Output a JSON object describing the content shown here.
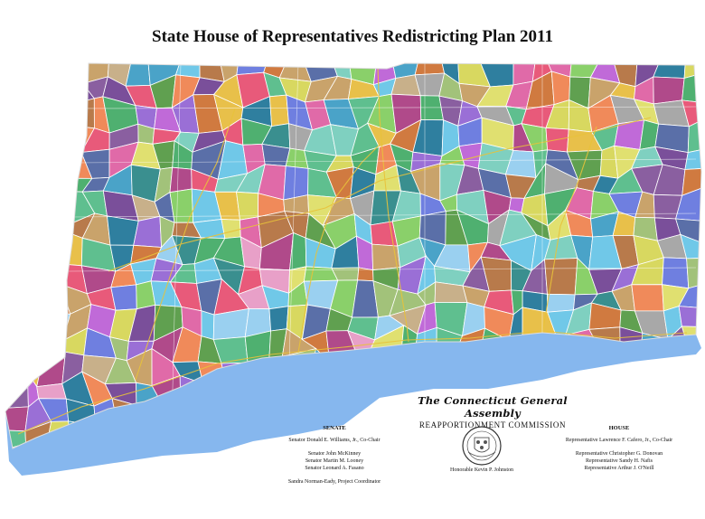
{
  "title": "State House of Representatives Redistricting Plan 2011",
  "assembly": {
    "name": "The Connecticut General Assembly",
    "commission": "REAPPORTIONMENT COMMISSION"
  },
  "senate": {
    "header": "SENATE",
    "co_chair": "Senator Donald E. Williams, Jr., Co-Chair",
    "members": [
      "Senator John McKinney",
      "Senator Martin M. Looney",
      "Senator Leonard A. Fasano"
    ],
    "coordinator": "Sandra Norman-Eady, Project Coordinator"
  },
  "house": {
    "header": "HOUSE",
    "co_chair": "Representative Lawrence F. Cafero, Jr., Co-Chair",
    "members": [
      "Representative Christopher G. Donovan",
      "Representative Sandy H. Nafis",
      "Representative Arthur J. O'Neill"
    ]
  },
  "seal_caption": "Honorable Kevin P. Johnston",
  "colors": {
    "water": "#86b7ee",
    "border": "#ffffff",
    "highway": "#e8c23a"
  },
  "icons": [
    "connecticut-state-seal-icon"
  ]
}
